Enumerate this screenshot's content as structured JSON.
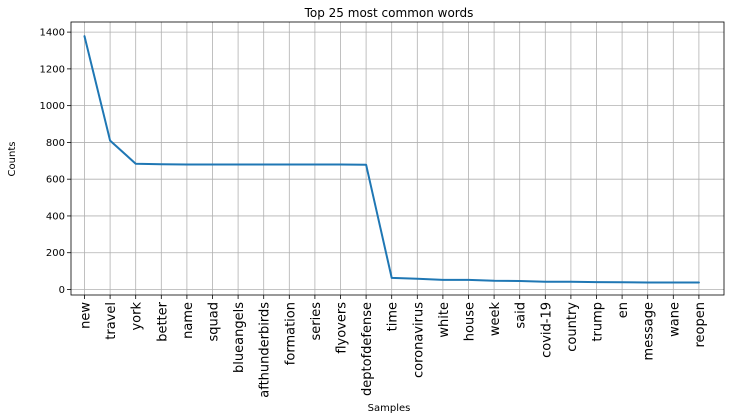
{
  "chart_data": {
    "type": "line",
    "title": "Top 25 most common words",
    "xlabel": "Samples",
    "ylabel": "Counts",
    "categories": [
      "new",
      "travel",
      "york",
      "better",
      "name",
      "squad",
      "blueangels",
      "afthunderbirds",
      "formation",
      "series",
      "flyovers",
      "deptofdefense",
      "time",
      "coronavirus",
      "white",
      "house",
      "week",
      "said",
      "covid-19",
      "country",
      "trump",
      "en",
      "message",
      "wane",
      "reopen"
    ],
    "series": [
      {
        "values": [
          1378,
          810,
          684,
          681,
          680,
          680,
          680,
          680,
          680,
          680,
          680,
          679,
          63,
          58,
          52,
          52,
          47,
          46,
          42,
          42,
          40,
          39,
          38,
          38,
          38
        ]
      }
    ],
    "ylim": [
      -30,
      1455
    ],
    "yticks": [
      0,
      200,
      400,
      600,
      800,
      1000,
      1200,
      1400
    ],
    "grid": true,
    "line_color": "#1f77b4"
  }
}
